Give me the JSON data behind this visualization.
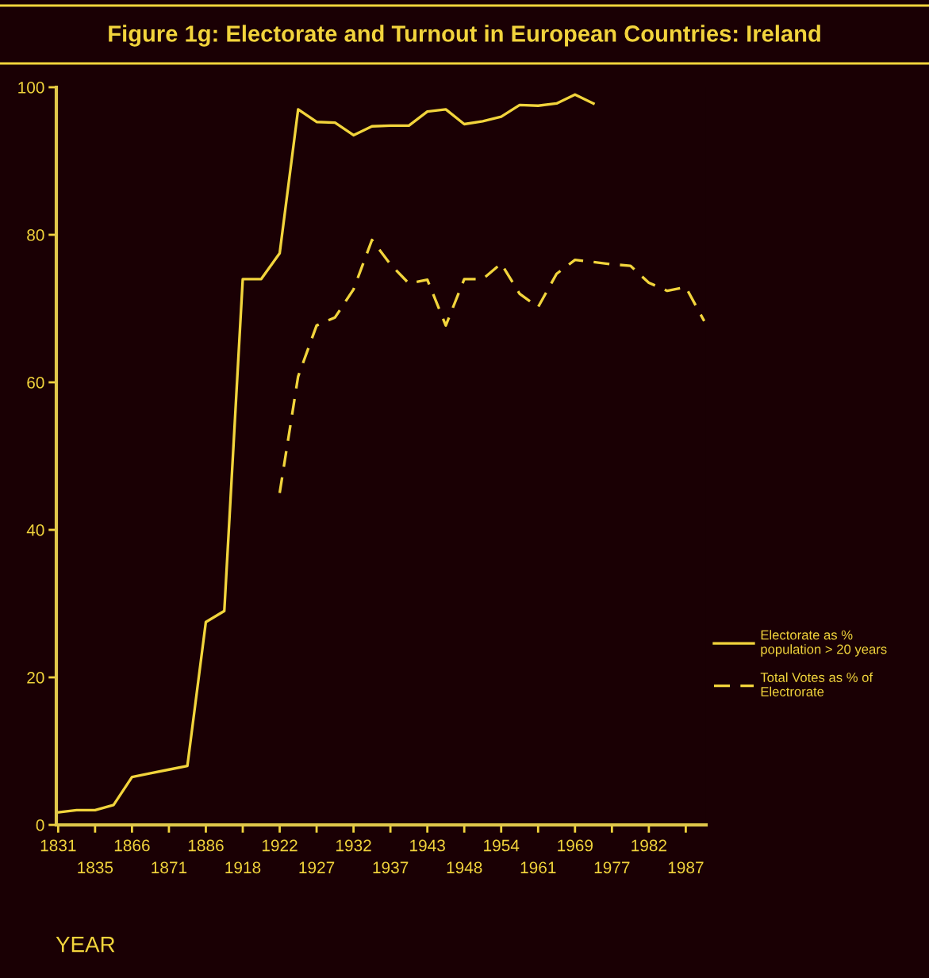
{
  "chart_data": {
    "type": "line",
    "title": "Figure 1g: Electorate and Turnout in European Countries: Ireland",
    "xlabel": "YEAR",
    "categories": [
      "1831",
      null,
      "1835",
      null,
      "1866",
      null,
      "1871",
      null,
      "1886",
      null,
      "1918",
      null,
      "1922",
      null,
      "1927",
      null,
      "1932",
      null,
      "1937",
      null,
      "1943",
      null,
      "1948",
      null,
      "1954",
      null,
      "1961",
      null,
      "1969",
      null,
      "1977",
      null,
      "1982",
      null,
      "1987",
      null
    ],
    "series": [
      {
        "name": "Electorate as %\npopulation > 20 years",
        "color": "#f2d43c",
        "line_style": "solid",
        "values": [
          1.7,
          2.0,
          2.0,
          2.7,
          6.5,
          7.0,
          7.5,
          8.0,
          27.5,
          29,
          74,
          74,
          77.5,
          97,
          95.3,
          95.2,
          93.5,
          94.7,
          94.8,
          94.8,
          96.7,
          97,
          95,
          95.4,
          96,
          97.6,
          97.5,
          97.8,
          99,
          97.8,
          null,
          null,
          null,
          null,
          null,
          null
        ]
      },
      {
        "name": "Total Votes as % of\nElectrorate",
        "color": "#f2d43c",
        "line_style": "dashed",
        "values": [
          null,
          null,
          null,
          null,
          null,
          null,
          null,
          null,
          null,
          null,
          null,
          null,
          45,
          60.8,
          67.7,
          68.8,
          72.6,
          79.3,
          76,
          73.4,
          73.9,
          67.7,
          74,
          74,
          76.1,
          72,
          70.2,
          74.7,
          76.6,
          76.3,
          76,
          75.8,
          73.5,
          72.4,
          72.9,
          68.3
        ]
      }
    ],
    "ylim": [
      0,
      100
    ],
    "yticks": [
      0,
      20,
      40,
      60,
      80,
      100
    ],
    "grid": false,
    "legend": "right"
  }
}
